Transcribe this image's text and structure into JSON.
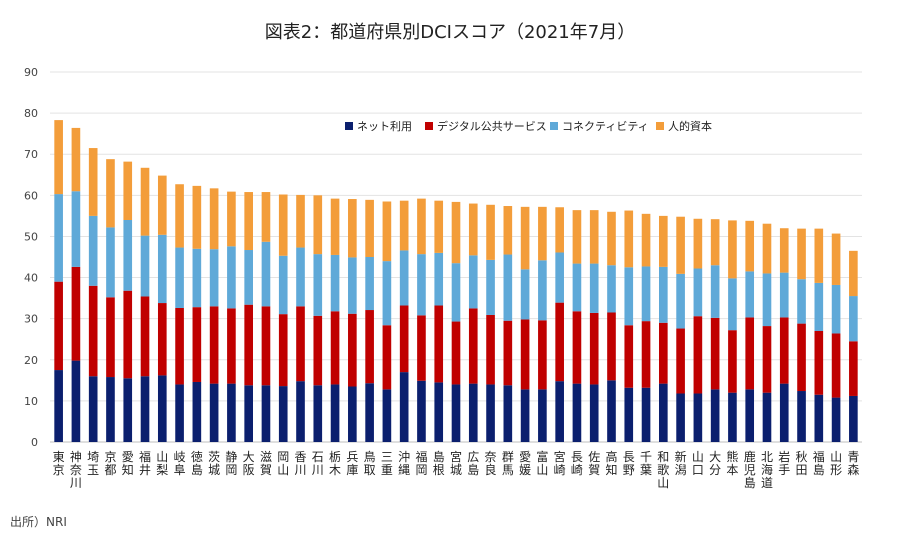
{
  "title": "図表2：都道府県別DCIスコア（2021年7月）",
  "source": "出所）NRI",
  "chart_data": {
    "type": "bar",
    "stacked": true,
    "ylim": [
      0,
      90
    ],
    "yticks": [
      0,
      10,
      20,
      30,
      40,
      50,
      60,
      70,
      80,
      90
    ],
    "grid": true,
    "legend_position": "top",
    "categories": [
      "東京",
      "神奈川",
      "埼玉",
      "京都",
      "愛知",
      "福井",
      "山梨",
      "岐阜",
      "徳島",
      "茨城",
      "静岡",
      "大阪",
      "滋賀",
      "岡山",
      "香川",
      "石川",
      "栃木",
      "兵庫",
      "鳥取",
      "三重",
      "沖縄",
      "福岡",
      "島根",
      "宮城",
      "広島",
      "奈良",
      "群馬",
      "愛媛",
      "富山",
      "宮崎",
      "長崎",
      "佐賀",
      "高知",
      "長野",
      "千葉",
      "和歌山",
      "新潟",
      "山口",
      "大分",
      "熊本",
      "鹿児島",
      "北海道",
      "岩手",
      "秋田",
      "福島",
      "山形",
      "青森"
    ],
    "series": [
      {
        "name": "ネット利用",
        "color": "#0b1f6e",
        "values": [
          17.5,
          19.8,
          16,
          15.8,
          15.5,
          16,
          16.2,
          14,
          14.6,
          14.2,
          14.2,
          13.8,
          13.8,
          13.6,
          14.8,
          13.8,
          14,
          13.5,
          14.3,
          12.8,
          17,
          14.9,
          14.5,
          14,
          14.2,
          14,
          13.8,
          12.8,
          12.8,
          14.8,
          14.2,
          14,
          15,
          13.2,
          13.2,
          14.2,
          11.8,
          11.8,
          12.8,
          12,
          12.8,
          12,
          14.2,
          12.4,
          11.5,
          10.8,
          11.2
        ]
      },
      {
        "name": "デジタル公共サービス",
        "color": "#c00000",
        "values": [
          21.5,
          22.8,
          22,
          19.4,
          21.3,
          19.4,
          17.6,
          18.6,
          18.2,
          18.8,
          18.3,
          19.6,
          19.2,
          17.5,
          18.2,
          16.9,
          17.8,
          17.7,
          17.8,
          15.6,
          16.2,
          15.9,
          18.7,
          15.3,
          18.3,
          16.9,
          15.7,
          17,
          16.8,
          19.1,
          17.6,
          17.4,
          16.5,
          15.2,
          16.2,
          14.8,
          15.8,
          18.8,
          17.4,
          15.2,
          17.5,
          16.2,
          16.1,
          16.4,
          15.5,
          15.6,
          13.3
        ]
      },
      {
        "name": "コネクティビティ",
        "color": "#5fa9d8",
        "values": [
          21.3,
          18.4,
          17,
          17,
          17.2,
          14.8,
          16.6,
          14.7,
          14.2,
          13.9,
          15.1,
          13.3,
          15.7,
          14.2,
          14.3,
          15,
          13.7,
          13.7,
          12.9,
          15.6,
          13.4,
          14.9,
          12.8,
          14.2,
          12.9,
          13.4,
          16.1,
          12.2,
          14.6,
          12.2,
          11.6,
          12,
          11.5,
          14.1,
          13.3,
          13.6,
          13.3,
          11.6,
          12.8,
          12.6,
          11.2,
          12.8,
          10.9,
          10.8,
          11.7,
          11.8,
          11
        ]
      },
      {
        "name": "人的資本",
        "color": "#f39d3a",
        "values": [
          18,
          15.4,
          16.5,
          16.6,
          14.2,
          16.5,
          14.4,
          15.4,
          15.3,
          14.8,
          13.3,
          14.1,
          12.1,
          14.9,
          12.8,
          14.3,
          13.7,
          14.2,
          13.9,
          14.5,
          12.1,
          13.5,
          12.7,
          14.9,
          12.6,
          13.4,
          11.8,
          15.2,
          13,
          11,
          13,
          13,
          13,
          13.8,
          12.8,
          12.4,
          13.9,
          12.1,
          11.2,
          14.1,
          12.3,
          12.1,
          10.8,
          12.3,
          13.2,
          12.5,
          11
        ]
      }
    ]
  }
}
